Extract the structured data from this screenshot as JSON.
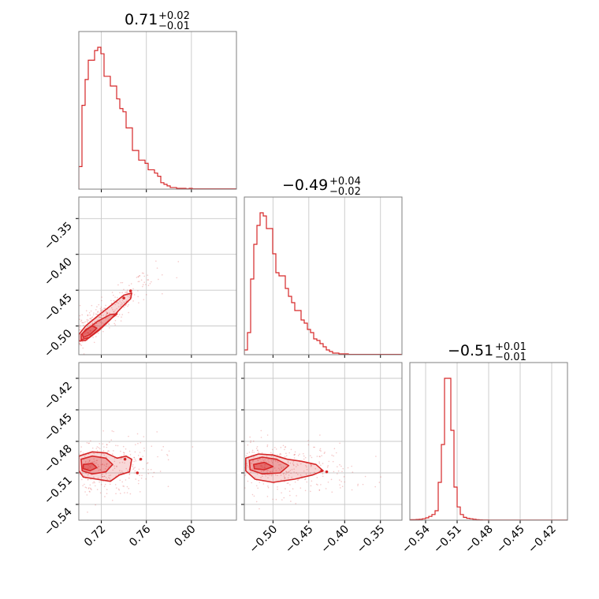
{
  "chart_data": {
    "type": "corner",
    "color": "#d62728",
    "grid": true,
    "parameters": [
      {
        "id": "p0",
        "range": [
          0.7,
          0.84
        ],
        "ticks": [
          0.72,
          0.76,
          0.8
        ],
        "tick_labels": [
          "0.72",
          "0.76",
          "0.80"
        ],
        "title": {
          "median": "0.71",
          "upper": "+0.02",
          "lower": "−0.01"
        }
      },
      {
        "id": "p1",
        "range": [
          -0.54,
          -0.32
        ],
        "ticks": [
          -0.35,
          -0.4,
          -0.45,
          -0.5
        ],
        "tick_labels": [
          "−0.35",
          "−0.40",
          "−0.45",
          "−0.50"
        ],
        "title": {
          "median": "−0.49",
          "upper": "+0.04",
          "lower": "−0.02"
        }
      },
      {
        "id": "p2",
        "range": [
          -0.555,
          -0.405
        ],
        "ticks": [
          -0.42,
          -0.45,
          -0.48,
          -0.51,
          -0.54
        ],
        "tick_labels": [
          "−0.42",
          "−0.45",
          "−0.48",
          "−0.51",
          "−0.54"
        ],
        "title": {
          "median": "−0.51",
          "upper": "+0.01",
          "lower": "−0.01"
        }
      }
    ],
    "bottom_tick_labels": {
      "p0": [
        "0.72",
        "0.76",
        "0.80"
      ],
      "p1": [
        "−0.50",
        "−0.45",
        "−0.40",
        "−0.35"
      ],
      "p2": [
        "−0.54",
        "−0.51",
        "−0.48",
        "−0.45",
        "−0.42"
      ]
    },
    "histograms": {
      "p0": {
        "edges_start": 0.7,
        "bin_width": 0.0028,
        "counts": [
          14,
          52,
          68,
          80,
          80,
          86,
          88,
          84,
          70,
          70,
          64,
          64,
          56,
          50,
          48,
          38,
          38,
          24,
          24,
          18,
          18,
          16,
          12,
          12,
          10,
          8,
          4,
          3,
          2,
          1,
          1,
          0.5,
          0.5,
          0.5,
          0.2,
          0.5,
          0.2,
          0.2,
          0.2,
          0.2,
          0.2,
          0.2,
          0.2,
          0.2,
          0.2,
          0.2,
          0.2,
          0.2,
          0.2,
          0.2
        ]
      },
      "p1": {
        "edges_start": -0.54,
        "bin_width": 0.0044,
        "counts": [
          3,
          14,
          48,
          70,
          82,
          90,
          88,
          80,
          80,
          64,
          52,
          50,
          50,
          42,
          37,
          33,
          28,
          28,
          22,
          20,
          16,
          14,
          10,
          9,
          7,
          5,
          3,
          2,
          1,
          1,
          0.5,
          0.5,
          0.5,
          0.2,
          0.2,
          0.2,
          0.2,
          0.2,
          0.2,
          0.2,
          0.2,
          0.2,
          0.2,
          0.2,
          0.2,
          0.2,
          0.2,
          0.2,
          0.2,
          0.2
        ]
      },
      "p2": {
        "edges_start": -0.555,
        "bin_width": 0.003,
        "counts": [
          0.5,
          0.5,
          0.8,
          1,
          1.5,
          2.5,
          4,
          6,
          10,
          40,
          80,
          150,
          150,
          95,
          35,
          14,
          6,
          3,
          2,
          1.5,
          1,
          0.5,
          0.3,
          0.2,
          0.2,
          0.1,
          0.1,
          0.1,
          0.1,
          0.1,
          0.1,
          0.1,
          0.1,
          0.1,
          0.1,
          0.1,
          0.1,
          0.1,
          0.1,
          0.1,
          0.1,
          0.1,
          0.1,
          0.1,
          0.1,
          0.1,
          0.1,
          0.1,
          0.1,
          0.1
        ]
      }
    },
    "joint": {
      "p1_vs_p0": {
        "center": [
          0.713,
          -0.497
        ],
        "slope": 1.45,
        "spread_along": 0.012,
        "spread_perp": 0.005,
        "levels": [
          [
            [
              0.7,
              -0.521
            ],
            [
              0.706,
              -0.52
            ],
            [
              0.718,
              -0.506
            ],
            [
              0.728,
              -0.491
            ],
            [
              0.738,
              -0.474
            ],
            [
              0.746,
              -0.462
            ],
            [
              0.747,
              -0.454
            ],
            [
              0.74,
              -0.457
            ],
            [
              0.728,
              -0.472
            ],
            [
              0.716,
              -0.487
            ],
            [
              0.706,
              -0.5
            ],
            [
              0.7,
              -0.512
            ]
          ],
          [
            [
              0.702,
              -0.519
            ],
            [
              0.709,
              -0.516
            ],
            [
              0.72,
              -0.502
            ],
            [
              0.73,
              -0.488
            ],
            [
              0.734,
              -0.483
            ],
            [
              0.728,
              -0.484
            ],
            [
              0.716,
              -0.494
            ],
            [
              0.707,
              -0.505
            ],
            [
              0.702,
              -0.512
            ]
          ],
          [
            [
              0.704,
              -0.516
            ],
            [
              0.71,
              -0.512
            ],
            [
              0.716,
              -0.503
            ],
            [
              0.712,
              -0.5
            ],
            [
              0.706,
              -0.505
            ],
            [
              0.703,
              -0.511
            ]
          ]
        ],
        "outliers": [
          [
            0.746,
            -0.451
          ],
          [
            0.74,
            -0.461
          ]
        ]
      },
      "p2_vs_p0": {
        "center": [
          0.713,
          -0.506
        ],
        "levels": [
          [
            [
              0.7,
              -0.494
            ],
            [
              0.712,
              -0.49
            ],
            [
              0.724,
              -0.491
            ],
            [
              0.734,
              -0.496
            ],
            [
              0.742,
              -0.494
            ],
            [
              0.747,
              -0.497
            ],
            [
              0.745,
              -0.509
            ],
            [
              0.736,
              -0.512
            ],
            [
              0.728,
              -0.518
            ],
            [
              0.716,
              -0.516
            ],
            [
              0.704,
              -0.514
            ],
            [
              0.7,
              -0.508
            ]
          ],
          [
            [
              0.702,
              -0.497
            ],
            [
              0.712,
              -0.494
            ],
            [
              0.724,
              -0.496
            ],
            [
              0.73,
              -0.502
            ],
            [
              0.724,
              -0.509
            ],
            [
              0.712,
              -0.511
            ],
            [
              0.703,
              -0.508
            ]
          ],
          [
            [
              0.704,
              -0.502
            ],
            [
              0.712,
              -0.501
            ],
            [
              0.716,
              -0.505
            ],
            [
              0.71,
              -0.508
            ],
            [
              0.704,
              -0.506
            ]
          ]
        ],
        "outliers": [
          [
            0.741,
            -0.497
          ],
          [
            0.755,
            -0.497
          ],
          [
            0.752,
            -0.51
          ]
        ]
      },
      "p2_vs_p1": {
        "center": [
          -0.495,
          -0.505
        ],
        "levels": [
          [
            [
              -0.538,
              -0.496
            ],
            [
              -0.52,
              -0.492
            ],
            [
              -0.5,
              -0.493
            ],
            [
              -0.48,
              -0.497
            ],
            [
              -0.46,
              -0.499
            ],
            [
              -0.44,
              -0.502
            ],
            [
              -0.43,
              -0.508
            ],
            [
              -0.445,
              -0.512
            ],
            [
              -0.47,
              -0.516
            ],
            [
              -0.5,
              -0.519
            ],
            [
              -0.525,
              -0.516
            ],
            [
              -0.538,
              -0.508
            ]
          ],
          [
            [
              -0.533,
              -0.498
            ],
            [
              -0.515,
              -0.495
            ],
            [
              -0.495,
              -0.497
            ],
            [
              -0.478,
              -0.503
            ],
            [
              -0.49,
              -0.51
            ],
            [
              -0.515,
              -0.511
            ],
            [
              -0.532,
              -0.507
            ]
          ],
          [
            [
              -0.527,
              -0.502
            ],
            [
              -0.512,
              -0.5
            ],
            [
              -0.5,
              -0.504
            ],
            [
              -0.512,
              -0.507
            ],
            [
              -0.526,
              -0.506
            ]
          ]
        ],
        "outliers": [
          [
            -0.432,
            -0.508
          ],
          [
            -0.425,
            -0.509
          ]
        ]
      }
    }
  }
}
